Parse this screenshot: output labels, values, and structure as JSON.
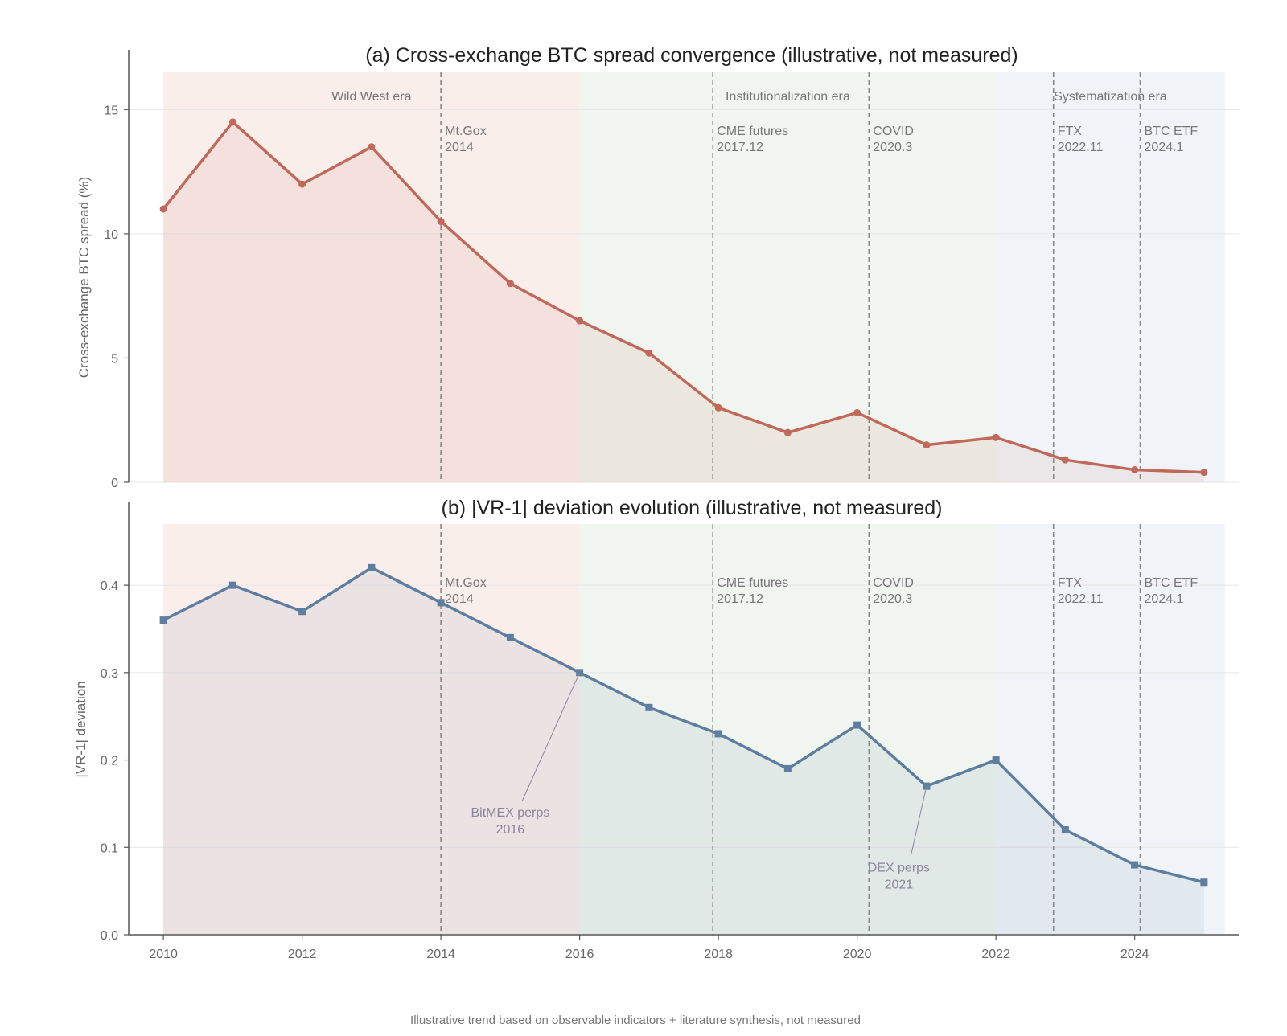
{
  "footnote": "Illustrative trend based on observable indicators + literature synthesis, not measured",
  "eras": [
    {
      "label": "Wild West era",
      "start": 2010,
      "end": 2016,
      "color": "#f4d9d2"
    },
    {
      "label": "Institutionalization era",
      "start": 2016,
      "end": 2022,
      "color": "#dde9dc"
    },
    {
      "label": "Systematization era",
      "start": 2022,
      "end": 2025.3,
      "color": "#dde6ef"
    }
  ],
  "events": [
    {
      "x": 2014,
      "name": "Mt.Gox",
      "date": "2014"
    },
    {
      "x": 2017.92,
      "name": "CME futures",
      "date": "2017.12"
    },
    {
      "x": 2020.17,
      "name": "COVID",
      "date": "2020.3"
    },
    {
      "x": 2022.83,
      "name": "FTX",
      "date": "2022.11"
    },
    {
      "x": 2024.08,
      "name": "BTC ETF",
      "date": "2024.1"
    }
  ],
  "chart_data": [
    {
      "type": "line",
      "title": "(a) Cross-exchange BTC spread convergence (illustrative, not measured)",
      "ylabel": "Cross-exchange BTC spread (%)",
      "xlabel": "",
      "xlim": [
        2009.5,
        2025.5
      ],
      "ylim": [
        0,
        16.5
      ],
      "yticks": [
        0,
        5,
        10,
        15
      ],
      "xticks": [
        2010,
        2012,
        2014,
        2016,
        2018,
        2020,
        2022,
        2024
      ],
      "grid": true,
      "color": "#c0685a",
      "marker": "circle",
      "x": [
        2010,
        2011,
        2012,
        2013,
        2014,
        2015,
        2016,
        2017,
        2018,
        2019,
        2020,
        2021,
        2022,
        2023,
        2024,
        2025
      ],
      "values": [
        11.0,
        14.5,
        12.0,
        13.5,
        10.5,
        8.0,
        6.5,
        5.2,
        3.0,
        2.0,
        2.8,
        1.5,
        1.8,
        0.9,
        0.5,
        0.4
      ],
      "annotations": []
    },
    {
      "type": "line",
      "title": "(b) |VR-1| deviation evolution (illustrative, not measured)",
      "ylabel": "|VR-1| deviation",
      "xlabel": "",
      "xlim": [
        2009.5,
        2025.5
      ],
      "ylim": [
        0,
        0.47
      ],
      "yticks": [
        0.0,
        0.1,
        0.2,
        0.3,
        0.4
      ],
      "ytick_labels": [
        "0.0",
        "0.1",
        "0.2",
        "0.3",
        "0.4"
      ],
      "xticks": [
        2010,
        2012,
        2014,
        2016,
        2018,
        2020,
        2022,
        2024
      ],
      "grid": true,
      "color": "#5f7d9f",
      "marker": "square",
      "x": [
        2010,
        2011,
        2012,
        2013,
        2014,
        2015,
        2016,
        2017,
        2018,
        2019,
        2020,
        2021,
        2022,
        2023,
        2024,
        2025
      ],
      "values": [
        0.36,
        0.4,
        0.37,
        0.42,
        0.38,
        0.34,
        0.3,
        0.26,
        0.23,
        0.19,
        0.24,
        0.17,
        0.2,
        0.12,
        0.08,
        0.06
      ],
      "annotations": [
        {
          "line1": "BitMEX perps",
          "line2": "2016",
          "point_x": 2016,
          "point_y": 0.3,
          "text_x": 2015.0,
          "text_y": 0.135
        },
        {
          "line1": "DEX perps",
          "line2": "2021",
          "point_x": 2021,
          "point_y": 0.17,
          "text_x": 2020.6,
          "text_y": 0.072
        }
      ]
    }
  ]
}
